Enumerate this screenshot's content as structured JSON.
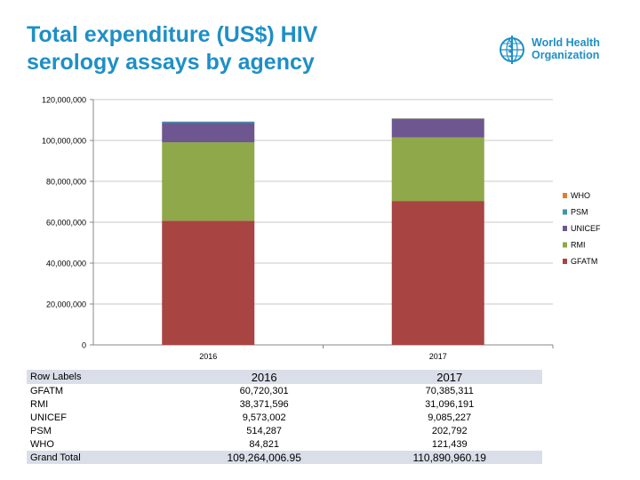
{
  "title": "Total expenditure (US$) HIV serology assays by agency",
  "logo": {
    "text_line1": "World Health",
    "text_line2": "Organization",
    "icon": "who-emblem-icon"
  },
  "chart_data": {
    "type": "bar",
    "stacked": true,
    "categories": [
      "2016",
      "2017"
    ],
    "series": [
      {
        "name": "GFATM",
        "color": "#a84442",
        "values": [
          60720301,
          70385311
        ]
      },
      {
        "name": "RMI",
        "color": "#8fa84a",
        "values": [
          38371596,
          31096191
        ]
      },
      {
        "name": "UNICEF",
        "color": "#6e5690",
        "values": [
          9573002,
          9085227
        ]
      },
      {
        "name": "PSM",
        "color": "#3f94ad",
        "values": [
          514287,
          202792
        ]
      },
      {
        "name": "WHO",
        "color": "#e07e33",
        "values": [
          84821,
          121439
        ]
      }
    ],
    "legend_order": [
      "WHO",
      "PSM",
      "UNICEF",
      "RMI",
      "GFATM"
    ],
    "y_ticks": [
      "0",
      "20,000,000",
      "40,000,000",
      "60,000,000",
      "80,000,000",
      "100,000,000",
      "120,000,000"
    ],
    "ylim": [
      0,
      120000000
    ],
    "legend_position": "right",
    "grid": true
  },
  "table": {
    "header_label": "Row Labels",
    "columns": [
      "2016",
      "2017"
    ],
    "rows": [
      {
        "label": "GFATM",
        "values": [
          "60,720,301",
          "70,385,311"
        ]
      },
      {
        "label": "RMI",
        "values": [
          "38,371,596",
          "31,096,191"
        ]
      },
      {
        "label": "UNICEF",
        "values": [
          "9,573,002",
          "9,085,227"
        ]
      },
      {
        "label": "PSM",
        "values": [
          "514,287",
          "202,792"
        ]
      },
      {
        "label": "WHO",
        "values": [
          "84,821",
          "121,439"
        ]
      }
    ],
    "total": {
      "label": "Grand Total",
      "values": [
        "109,264,006.95",
        "110,890,960.19"
      ]
    }
  }
}
